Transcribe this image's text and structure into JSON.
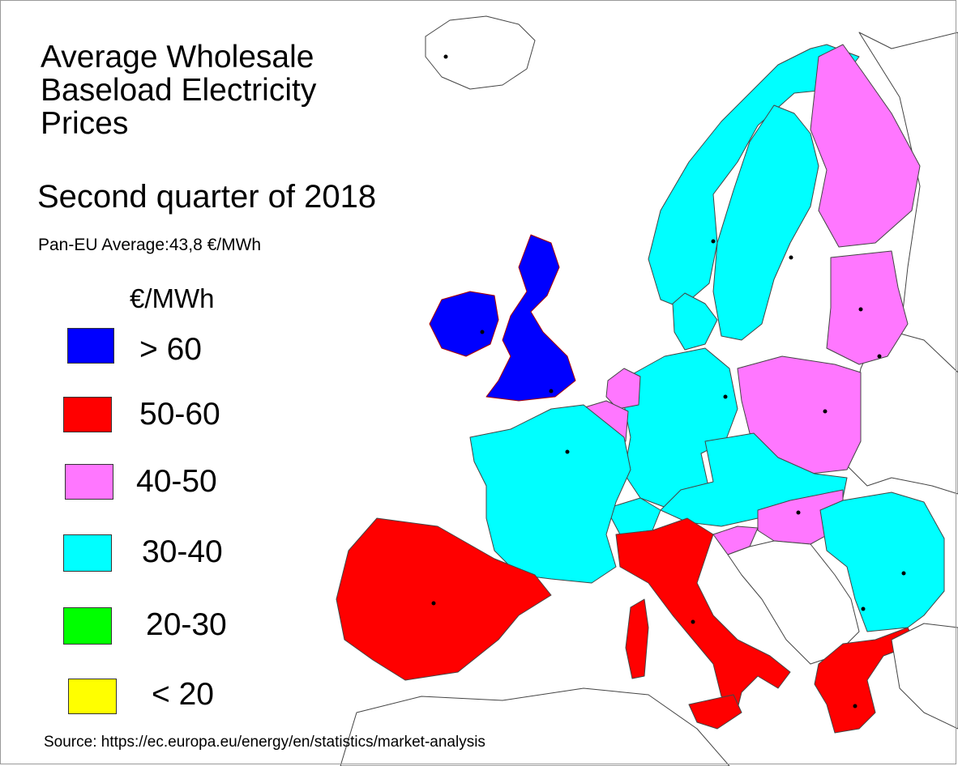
{
  "title": "Average Wholesale Baseload Electricity Prices",
  "subtitle": "Second quarter of 2018",
  "pan_eu_average": "Pan-EU Average:43,8 €/MWh",
  "legend": {
    "unit": "€/MWh",
    "items": [
      {
        "label": "> 60",
        "color": "#0000ff"
      },
      {
        "label": "50-60",
        "color": "#ff0000"
      },
      {
        "label": "40-50",
        "color": "#ff77ff"
      },
      {
        "label": "30-40",
        "color": "#00ffff"
      },
      {
        "label": "20-30",
        "color": "#00ff00"
      },
      {
        "label": "< 20",
        "color": "#ffff00"
      }
    ]
  },
  "source": "Source: https://ec.europa.eu/energy/en/statistics/market-analysis"
}
